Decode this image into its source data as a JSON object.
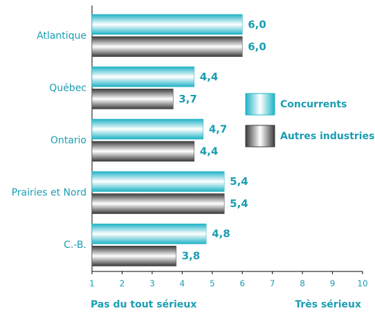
{
  "chart_data": {
    "type": "hbar",
    "categories": [
      "Atlantique",
      "Québec",
      "Ontario",
      "Prairies et Nord",
      "C.-B."
    ],
    "series": [
      {
        "name": "Concurrents",
        "color": "#1fb3c6",
        "values": [
          6.0,
          4.4,
          4.7,
          5.4,
          4.8
        ],
        "value_labels": [
          "6,0",
          "4,4",
          "4,7",
          "5,4",
          "4,8"
        ]
      },
      {
        "name": "Autres industries",
        "color": "#3a3a3a",
        "values": [
          6.0,
          3.7,
          4.4,
          5.4,
          3.8
        ],
        "value_labels": [
          "6,0",
          "3,7",
          "4,4",
          "5,4",
          "3,8"
        ]
      }
    ],
    "xlim": [
      1,
      10
    ],
    "xticks": [
      1,
      2,
      3,
      4,
      5,
      6,
      7,
      8,
      9,
      10
    ],
    "xlabel_left": "Pas du tout sérieux",
    "xlabel_right": "Très sérieux",
    "legend": "right"
  }
}
